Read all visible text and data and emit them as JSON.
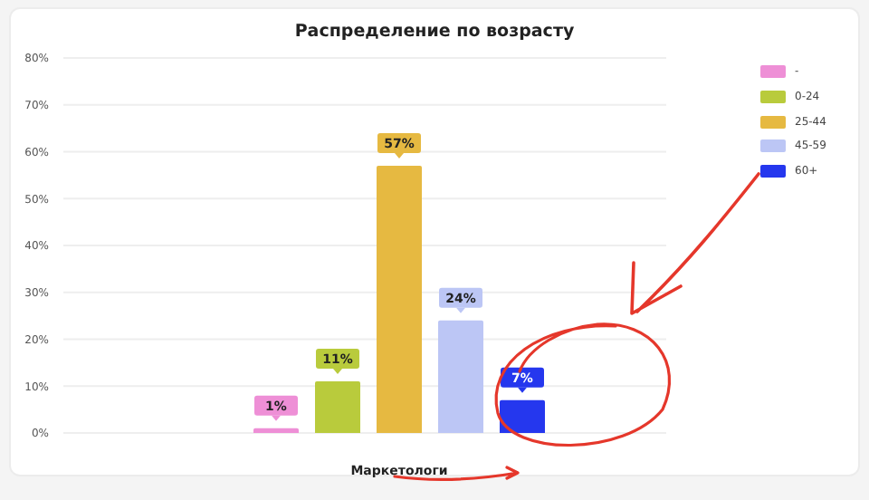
{
  "chart_data": {
    "type": "bar",
    "title": "Распределение по возрасту",
    "categories": [
      "Маркетологи"
    ],
    "series": [
      {
        "name": "-",
        "color": "#ee8fd6",
        "values": [
          1
        ],
        "value_labels": [
          "1%"
        ]
      },
      {
        "name": "0-24",
        "color": "#b9cb3c",
        "values": [
          11
        ],
        "value_labels": [
          "11%"
        ]
      },
      {
        "name": "25-44",
        "color": "#e6b941",
        "values": [
          57
        ],
        "value_labels": [
          "57%"
        ]
      },
      {
        "name": "45-59",
        "color": "#bcc6f5",
        "values": [
          24
        ],
        "value_labels": [
          "24%"
        ]
      },
      {
        "name": "60+",
        "color": "#2537ee",
        "values": [
          7
        ],
        "value_labels": [
          "7%"
        ]
      }
    ],
    "ylim": [
      0,
      80
    ],
    "yticks": [
      {
        "value": 0,
        "label": "0%"
      },
      {
        "value": 10,
        "label": "10%"
      },
      {
        "value": 20,
        "label": "20%"
      },
      {
        "value": 30,
        "label": "30%"
      },
      {
        "value": 40,
        "label": "40%"
      },
      {
        "value": 50,
        "label": "50%"
      },
      {
        "value": 60,
        "label": "60%"
      },
      {
        "value": 70,
        "label": "70%"
      },
      {
        "value": 80,
        "label": "80%"
      }
    ],
    "grid": "y",
    "legend": "top right"
  }
}
